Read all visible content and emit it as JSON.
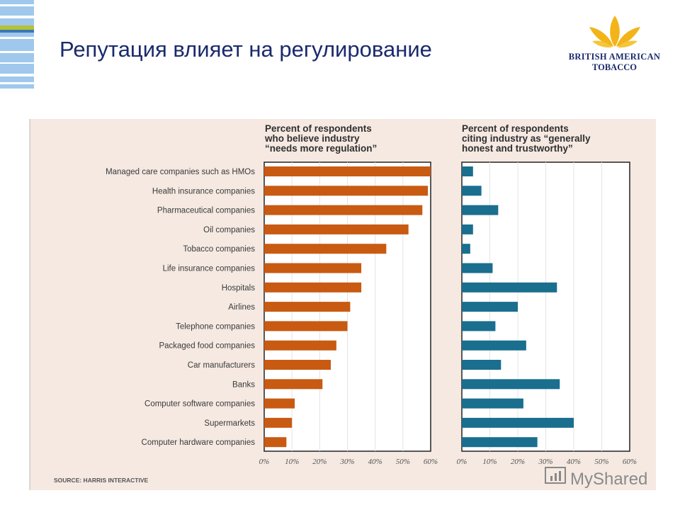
{
  "slide": {
    "title": "Репутация влияет на регулирование",
    "logo_text": [
      "British American",
      "Tobacco"
    ]
  },
  "colors": {
    "title": "#1a2a6c",
    "panel_bg": "#f5e9e2",
    "regulation_bar": "#c85a12",
    "trust_bar": "#1a6e8e",
    "logo_gold": "#f2b418"
  },
  "chart_data": [
    {
      "type": "bar",
      "orientation": "horizontal",
      "title": [
        "Percent of respondents",
        "who believe industry",
        "“needs more regulation”"
      ],
      "categories": [
        "Managed care companies such as HMOs",
        "Health insurance companies",
        "Pharmaceutical companies",
        "Oil companies",
        "Tobacco companies",
        "Life insurance companies",
        "Hospitals",
        "Airlines",
        "Telephone companies",
        "Packaged food companies",
        "Car manufacturers",
        "Banks",
        "Computer software companies",
        "Supermarkets",
        "Computer hardware companies"
      ],
      "values": [
        60,
        59,
        57,
        52,
        44,
        35,
        35,
        31,
        30,
        26,
        24,
        21,
        11,
        10,
        8
      ],
      "xlim": [
        0,
        60
      ],
      "xticks": [
        "0%",
        "10%",
        "20%",
        "30%",
        "40%",
        "50%",
        "60%"
      ],
      "grid": true,
      "color": "#c85a12"
    },
    {
      "type": "bar",
      "orientation": "horizontal",
      "title": [
        "Percent of respondents",
        "citing industry as “generally",
        "honest and trustworthy”"
      ],
      "categories": [
        "Managed care companies such as HMOs",
        "Health insurance companies",
        "Pharmaceutical companies",
        "Oil companies",
        "Tobacco companies",
        "Life insurance companies",
        "Hospitals",
        "Airlines",
        "Telephone companies",
        "Packaged food companies",
        "Car manufacturers",
        "Banks",
        "Computer software companies",
        "Supermarkets",
        "Computer hardware companies"
      ],
      "values": [
        4,
        7,
        13,
        4,
        3,
        11,
        34,
        20,
        12,
        23,
        14,
        35,
        22,
        40,
        27
      ],
      "xlim": [
        0,
        60
      ],
      "xticks": [
        "0%",
        "10%",
        "20%",
        "30%",
        "40%",
        "50%",
        "60%"
      ],
      "grid": true,
      "color": "#1a6e8e"
    }
  ],
  "source": "SOURCE: HARRIS INTERACTIVE",
  "watermark": "MyShared"
}
